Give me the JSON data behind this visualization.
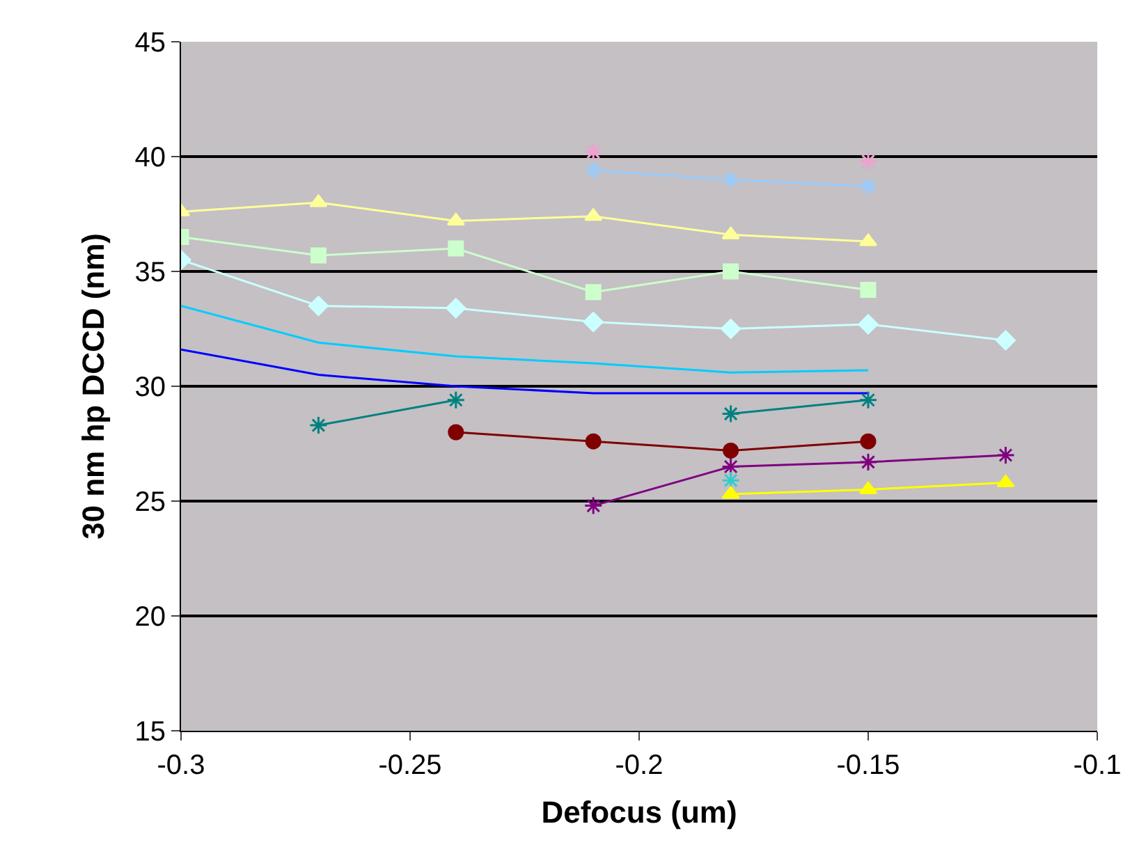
{
  "chart_data": {
    "type": "line",
    "xlabel": "Defocus (um)",
    "ylabel": "30 nm hp DCCD (nm)",
    "x": [
      -0.3,
      -0.27,
      -0.24,
      -0.21,
      -0.18,
      -0.15,
      -0.12
    ],
    "xlim": [
      -0.3,
      -0.1
    ],
    "xticks": [
      {
        "value": -0.3,
        "label": "-0.3"
      },
      {
        "value": -0.25,
        "label": "-0.25"
      },
      {
        "value": -0.2,
        "label": "-0.2"
      },
      {
        "value": -0.15,
        "label": "-0.15"
      },
      {
        "value": -0.1,
        "label": "-0.1"
      }
    ],
    "ylim": [
      15,
      45
    ],
    "yticks": [
      15,
      20,
      25,
      30,
      35,
      40,
      45
    ],
    "grid": "y",
    "series": [
      {
        "color": "#f0a0d0",
        "marker": "cross",
        "values": [
          null,
          null,
          null,
          40.2,
          null,
          39.8,
          null
        ]
      },
      {
        "color": "#99ccff",
        "marker": "cross",
        "values": [
          null,
          null,
          null,
          39.4,
          39.0,
          38.7,
          null
        ]
      },
      {
        "color": "#ffff99",
        "marker": "triangle",
        "values": [
          37.6,
          38.0,
          37.2,
          37.4,
          36.6,
          36.3,
          null
        ]
      },
      {
        "color": "#ccffcc",
        "marker": "square",
        "values": [
          36.5,
          35.7,
          36.0,
          34.1,
          35.0,
          34.2,
          null
        ]
      },
      {
        "color": "#ccffff",
        "marker": "diamond",
        "values": [
          35.5,
          33.5,
          33.4,
          32.8,
          32.5,
          32.7,
          32.0
        ]
      },
      {
        "color": "#00ccff",
        "marker": "none",
        "values": [
          33.5,
          31.9,
          31.3,
          31.0,
          30.6,
          30.7,
          null
        ]
      },
      {
        "color": "#0000ff",
        "marker": "none",
        "values": [
          31.6,
          30.5,
          30.0,
          29.7,
          29.7,
          29.7,
          null
        ]
      },
      {
        "color": "#008080",
        "marker": "cross",
        "values": [
          null,
          28.3,
          29.4,
          null,
          28.8,
          29.4,
          null
        ]
      },
      {
        "color": "#800000",
        "marker": "circle",
        "values": [
          null,
          null,
          28.0,
          27.6,
          27.2,
          27.6,
          null
        ]
      },
      {
        "color": "#800080",
        "marker": "cross",
        "values": [
          null,
          null,
          null,
          24.8,
          26.5,
          26.7,
          27.0
        ]
      },
      {
        "color": "#33cccc",
        "marker": "cross",
        "values": [
          null,
          null,
          null,
          null,
          25.9,
          null,
          null
        ]
      },
      {
        "color": "#ffff00",
        "marker": "triangle",
        "values": [
          null,
          null,
          null,
          null,
          25.3,
          25.5,
          25.8
        ]
      }
    ]
  }
}
